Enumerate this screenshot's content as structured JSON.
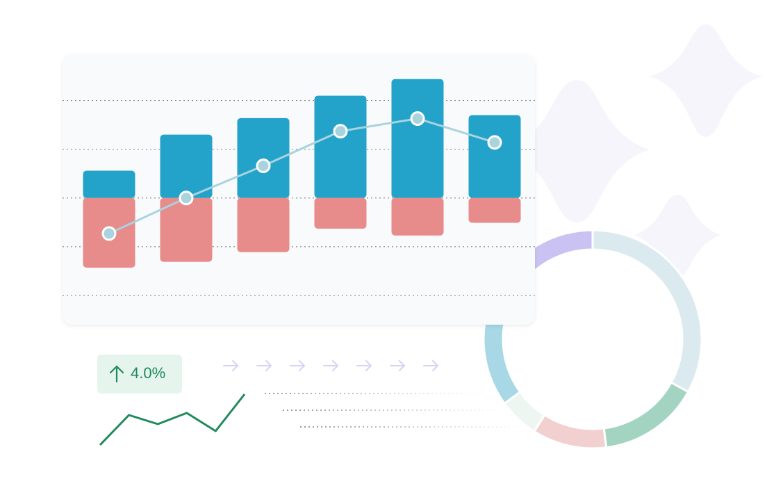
{
  "badge": {
    "text": "4.0%"
  },
  "chart_data": [
    {
      "type": "bar",
      "categories": [
        null,
        null,
        null,
        null,
        null,
        null
      ],
      "series": [
        {
          "color": "#23a3c9",
          "values": [
            0.56,
            1.3,
            1.64,
            2.1,
            2.44,
            1.7
          ]
        },
        {
          "color": "#e88b8b",
          "values": [
            -1.43,
            -1.31,
            -1.11,
            -0.63,
            -0.77,
            -0.51
          ]
        },
        {
          "type": "line",
          "color": "#a8d3df",
          "values": [
            -0.73,
            0,
            0.66,
            1.37,
            1.63,
            1.14
          ]
        }
      ],
      "ylim": [
        -2.6,
        2.95
      ],
      "yticks": [
        -2,
        -1,
        0,
        1,
        2
      ],
      "grid": true
    },
    {
      "type": "pie",
      "values": [
        33,
        15,
        11,
        6,
        19,
        16
      ],
      "colors": [
        "#dbeaee",
        "#a3d4c2",
        "#f3d0d0",
        "#eef6f2",
        "#a8d8e6",
        "#c9c2f2"
      ]
    },
    {
      "type": "line",
      "values": [
        0,
        43,
        30,
        46,
        20,
        73
      ],
      "color": "#1f8a5b",
      "ylim": [
        0,
        73
      ]
    }
  ]
}
